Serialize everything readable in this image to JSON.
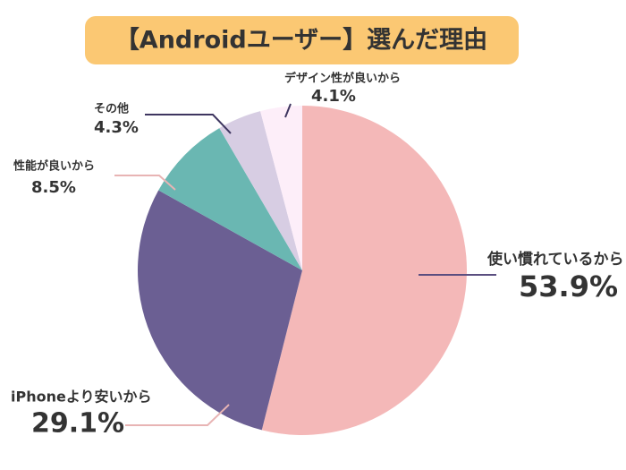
{
  "chart_data": {
    "type": "pie",
    "title": "【Androidユーザー】選んだ理由",
    "categories": [
      "使い慣れているから",
      "iPhoneより安いから",
      "性能が良いから",
      "その他",
      "デザイン性が良いから"
    ],
    "values": [
      53.9,
      29.1,
      8.5,
      4.3,
      4.1
    ],
    "value_labels": [
      "53.9%",
      "29.1%",
      "8.5%",
      "4.3%",
      "4.1%"
    ],
    "colors": [
      "#f4b8b8",
      "#6b5f93",
      "#6ab7b2",
      "#d7cde3",
      "#fdeef9"
    ]
  }
}
